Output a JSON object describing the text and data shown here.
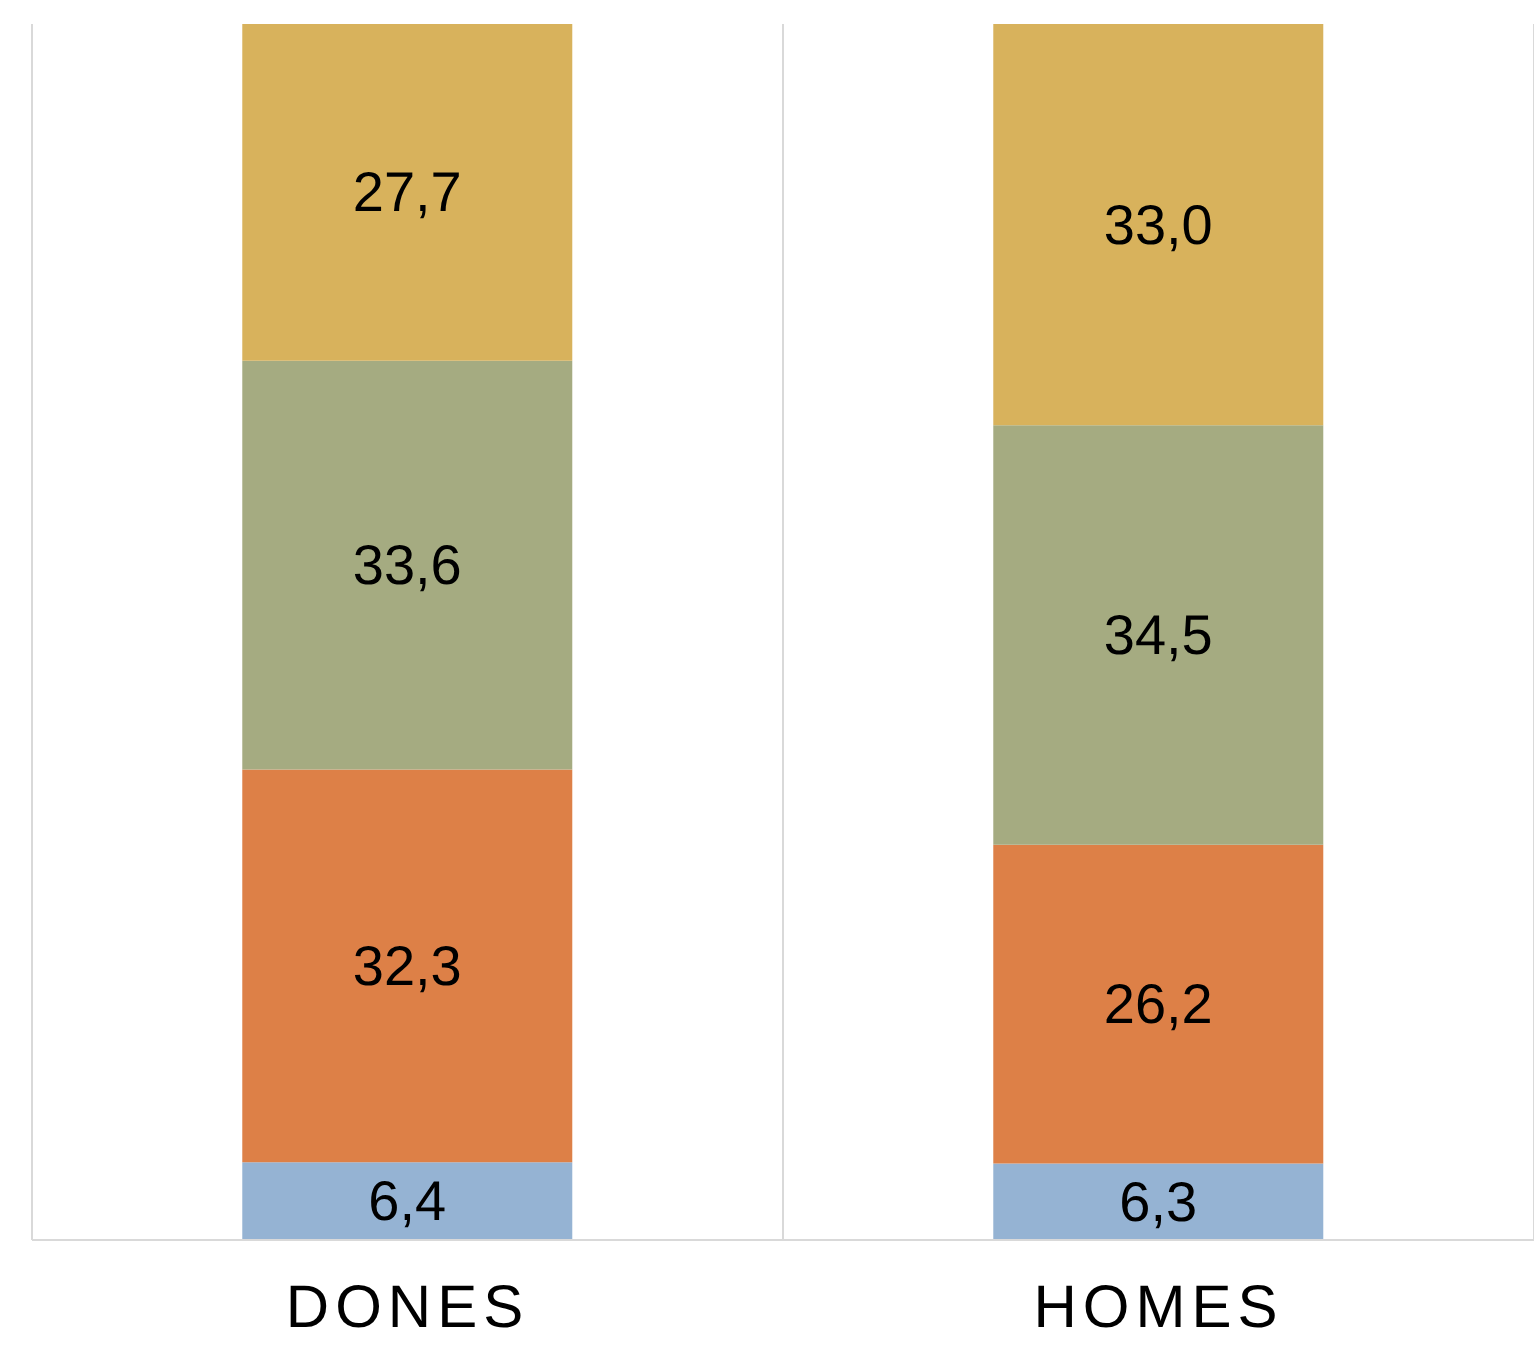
{
  "chart_data": {
    "type": "bar",
    "stacked": true,
    "categories": [
      "DONES",
      "HOMES"
    ],
    "ylim": [
      0,
      100
    ],
    "tick_labels": "x",
    "grid": "x",
    "legend": false,
    "series": [
      {
        "color": "#95b3d3",
        "values": [
          6.4,
          6.3
        ],
        "value_labels": [
          "6,4",
          "6,3"
        ]
      },
      {
        "color": "#dd8047",
        "values": [
          32.3,
          26.2
        ],
        "value_labels": [
          "32,3",
          "26,2"
        ]
      },
      {
        "color": "#a5ab81",
        "values": [
          33.6,
          34.5
        ],
        "value_labels": [
          "33,6",
          "34,5"
        ]
      },
      {
        "color": "#d8b25c",
        "values": [
          27.7,
          33.0
        ],
        "value_labels": [
          "27,7",
          "33,0"
        ]
      }
    ]
  }
}
